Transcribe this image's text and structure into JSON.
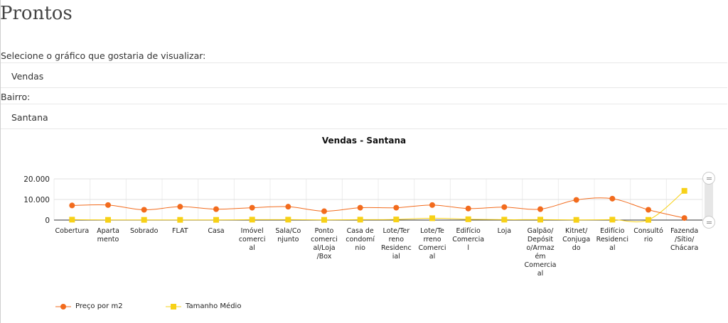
{
  "page": {
    "title": "Prontos"
  },
  "form": {
    "chart_label": "Selecione o gráfico que gostaria de visualizar:",
    "chart_value": "Vendas",
    "bairro_label": "Bairro:",
    "bairro_value": "Santana"
  },
  "chart_data": {
    "type": "line",
    "title": "Vendas - Santana",
    "categories": [
      [
        "Cobertura"
      ],
      [
        "Aparta",
        "mento"
      ],
      [
        "Sobrado"
      ],
      [
        "FLAT"
      ],
      [
        "Casa"
      ],
      [
        "Imóvel",
        "comerci",
        "al"
      ],
      [
        "Sala/Co",
        "njunto"
      ],
      [
        "Ponto",
        "comerci",
        "al/Loja",
        "/Box"
      ],
      [
        "Casa de",
        "condomí",
        "nio"
      ],
      [
        "Lote/Ter",
        "reno",
        "Residenc",
        "ial"
      ],
      [
        "Lote/Te",
        "rreno",
        "Comerci",
        "al"
      ],
      [
        "Edifício",
        "Comercia",
        "l"
      ],
      [
        "Loja"
      ],
      [
        "Galpão/",
        "Depósit",
        "o/Armaz",
        "ém",
        "Comercia",
        "al"
      ],
      [
        "Kitnet/",
        "Conjuga",
        "do"
      ],
      [
        "Edifício",
        "Residenci",
        "al"
      ],
      [
        "Consultó",
        "rio"
      ],
      [
        "Fazenda",
        "/Sítio/",
        "Chácara"
      ]
    ],
    "ylim": [
      0,
      20000
    ],
    "yticks": [
      "0",
      "10.000",
      "20.000"
    ],
    "yticks_values": [
      0,
      10000,
      20000
    ],
    "series": [
      {
        "name": "Preço por m2",
        "color": "#f26b1d",
        "marker": "circle",
        "values": [
          7100,
          7300,
          5000,
          6500,
          5300,
          6000,
          6500,
          4300,
          6000,
          6000,
          7300,
          5600,
          6300,
          5300,
          9800,
          10400,
          5000,
          1000
        ]
      },
      {
        "name": "Tamanho Médio",
        "color": "#f7d117",
        "marker": "square",
        "values": [
          200,
          100,
          100,
          100,
          100,
          200,
          200,
          100,
          200,
          300,
          900,
          400,
          200,
          200,
          100,
          200,
          100,
          14200
        ]
      }
    ],
    "grid": true,
    "legend_position": "bottom-left"
  }
}
